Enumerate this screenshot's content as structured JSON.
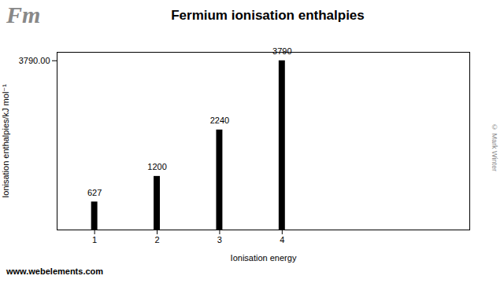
{
  "chart_data": {
    "type": "bar",
    "title": "Fermium ionisation enthalpies",
    "x": [
      1,
      2,
      3,
      4
    ],
    "values": [
      627,
      1200,
      2240,
      3790
    ],
    "color": "#000000",
    "xlabel": "Ionisation energy",
    "ylabel": "Ionisation enthalpies/kJ mol⁻¹",
    "xlim": [
      0.4,
      7.0
    ],
    "xticks": [
      1,
      2,
      3,
      4
    ],
    "ylim": [
      0,
      3979.5
    ],
    "yticks": [
      {
        "value": 3790,
        "label": "3790.00"
      }
    ],
    "grid": false,
    "data_labels": true,
    "annotations": [
      "Fm",
      "www.webelements.com",
      "© Mark Winter"
    ]
  }
}
